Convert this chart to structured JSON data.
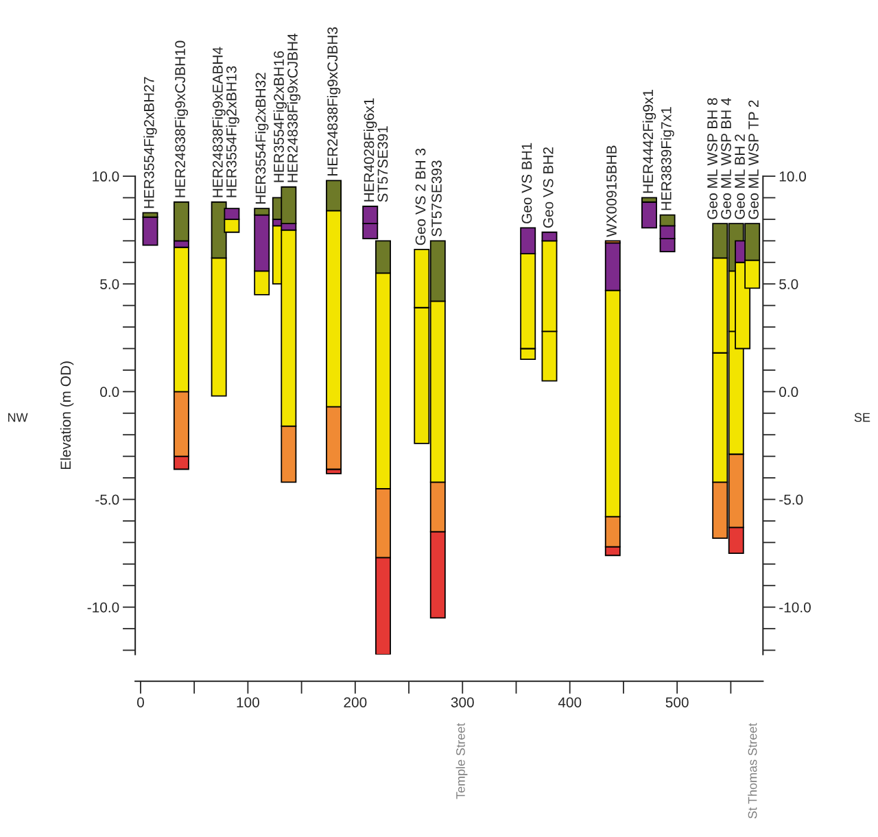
{
  "chart_data": {
    "type": "bar",
    "ylabel": "Elevation (m OD)",
    "x": [
      9,
      38,
      73,
      85,
      113,
      130,
      138,
      180,
      214,
      226,
      262,
      277,
      361,
      381,
      440,
      474,
      491,
      540,
      555,
      561,
      570
    ],
    "series": [
      {
        "color": "#e53935",
        "values": [
          null,
          0.6,
          null,
          null,
          null,
          null,
          null,
          0.2,
          null,
          4.5,
          null,
          4.0,
          null,
          null,
          0.4,
          null,
          null,
          null,
          1.2,
          null,
          null
        ],
        "base": [
          null,
          -3.6,
          null,
          null,
          null,
          null,
          null,
          -3.8,
          null,
          -12.2,
          null,
          -10.5,
          null,
          null,
          -7.6,
          null,
          null,
          null,
          -7.5,
          null,
          null
        ]
      },
      {
        "color": "#f08a34",
        "values": [
          null,
          3.0,
          null,
          null,
          null,
          null,
          2.6,
          2.9,
          null,
          3.2,
          null,
          2.3,
          null,
          null,
          1.4,
          null,
          null,
          2.6,
          3.4,
          null,
          null
        ],
        "base": [
          null,
          -3.0,
          null,
          null,
          null,
          null,
          -4.2,
          -3.6,
          null,
          -7.7,
          null,
          -6.5,
          null,
          null,
          -7.2,
          null,
          null,
          -6.8,
          -6.3,
          null,
          null
        ]
      },
      {
        "color": "#f2e400",
        "values": [
          null,
          null,
          null,
          null,
          null,
          null,
          null,
          null,
          null,
          null,
          6.3,
          null,
          0.5,
          2.3,
          null,
          null,
          null,
          6.0,
          5.7,
          null,
          null
        ],
        "base": [
          null,
          null,
          null,
          null,
          null,
          null,
          null,
          null,
          null,
          null,
          -2.4,
          null,
          1.5,
          0.5,
          null,
          null,
          null,
          -4.2,
          -2.9,
          null,
          null
        ]
      },
      {
        "color": "#f2e400",
        "values": [
          null,
          6.7,
          6.4,
          0.6,
          1.1,
          2.7,
          9.1,
          9.1,
          null,
          10.0,
          2.7,
          8.4,
          4.4,
          4.2,
          10.5,
          null,
          null,
          4.4,
          2.8,
          4.0,
          1.3
        ],
        "base": [
          null,
          0.0,
          -0.2,
          7.4,
          4.5,
          5.0,
          -1.6,
          -0.7,
          null,
          -4.5,
          3.9,
          -4.2,
          2.0,
          2.8,
          -5.8,
          null,
          null,
          1.8,
          2.8,
          2.0,
          4.8
        ]
      },
      {
        "color": "#7d2a8c",
        "values": [
          null,
          null,
          null,
          null,
          null,
          null,
          null,
          null,
          0.7,
          null,
          null,
          null,
          null,
          null,
          null,
          null,
          0.6,
          null,
          null,
          null,
          null
        ],
        "base": [
          null,
          null,
          null,
          null,
          null,
          null,
          null,
          null,
          7.1,
          null,
          null,
          null,
          null,
          null,
          null,
          null,
          6.5,
          null,
          null,
          null,
          null
        ]
      },
      {
        "color": "#7d2a8c",
        "values": [
          1.3,
          0.3,
          null,
          0.5,
          2.6,
          0.3,
          0.3,
          null,
          0.8,
          null,
          null,
          null,
          1.2,
          0.4,
          2.2,
          1.2,
          0.6,
          null,
          null,
          1.0,
          null
        ],
        "base": [
          6.8,
          6.7,
          null,
          8.0,
          5.6,
          7.7,
          7.5,
          null,
          7.8,
          null,
          null,
          null,
          6.4,
          7.0,
          4.7,
          7.6,
          7.1,
          null,
          null,
          6.0,
          null
        ]
      },
      {
        "color": "#6e7a28",
        "values": [
          0.2,
          1.8,
          2.6,
          null,
          0.3,
          1.0,
          1.7,
          1.4,
          null,
          1.5,
          null,
          2.8,
          null,
          null,
          null,
          0.2,
          0.5,
          1.6,
          2.2,
          null,
          1.7
        ],
        "base": [
          8.1,
          7.0,
          6.2,
          null,
          8.2,
          8.0,
          7.8,
          8.4,
          null,
          5.5,
          null,
          4.2,
          null,
          null,
          null,
          8.8,
          7.7,
          6.2,
          5.6,
          null,
          6.1
        ]
      },
      {
        "color": "#f08a34",
        "values": [
          null,
          null,
          null,
          null,
          null,
          null,
          null,
          null,
          null,
          null,
          null,
          null,
          null,
          null,
          0.1,
          null,
          null,
          null,
          null,
          null,
          null
        ],
        "base": [
          null,
          null,
          null,
          null,
          null,
          null,
          null,
          null,
          null,
          null,
          null,
          null,
          null,
          null,
          6.9,
          null,
          null,
          null,
          null,
          null,
          null
        ]
      }
    ],
    "xlim": [
      -5,
      580
    ],
    "xticks": [
      0,
      100,
      200,
      300,
      400,
      500
    ],
    "ylim": [
      -12.2,
      10
    ],
    "yticks": [
      {
        "value": -10,
        "label": "-10.0"
      },
      {
        "value": -5,
        "label": "-5.0"
      },
      {
        "value": 0,
        "label": "0.0"
      },
      {
        "value": 5,
        "label": "5.0"
      },
      {
        "value": 10,
        "label": "10.0"
      }
    ],
    "y2lim": [
      -12.2,
      10
    ],
    "y2ticks": [
      {
        "value": -10,
        "label": "-10.0"
      },
      {
        "value": -5,
        "label": "-5.0"
      },
      {
        "value": 0,
        "label": "0.0"
      },
      {
        "value": 5,
        "label": "5.0"
      },
      {
        "value": 10,
        "label": "10.0"
      }
    ],
    "grid": false,
    "annotations": [
      "NW",
      "SE",
      "Temple Street",
      "St Thomas Street",
      {
        "text": "HER3554Fig2xBH27",
        "x": 9,
        "y": 8.3
      },
      {
        "text": "HER24838Fig9xCJBH10",
        "x": 38,
        "y": 8.8
      },
      {
        "text": "HER24838Fig9xEABH4",
        "x": 73,
        "y": 8.8
      },
      {
        "text": "HER3554Fig2xBH13",
        "x": 85,
        "y": 8.5
      },
      {
        "text": "HER3554Fig2xBH32",
        "x": 113,
        "y": 8.5
      },
      {
        "text": "HER3554Fig2xBH16",
        "x": 130,
        "y": 9.0
      },
      {
        "text": "HER24838Fig9xCJBH4",
        "x": 138,
        "y": 9.5
      },
      {
        "text": "HER24838Fig9xCJBH3",
        "x": 180,
        "y": 9.8
      },
      {
        "text": "HER4028Fig6x1",
        "x": 214,
        "y": 8.6
      },
      {
        "text": "ST57SE391",
        "x": 226,
        "y": 7.0
      },
      {
        "text": "Geo VS 2 BH 3",
        "x": 262,
        "y": 6.6
      },
      {
        "text": "ST57SE393",
        "x": 277,
        "y": 7.0
      },
      {
        "text": "Geo VS BH1",
        "x": 361,
        "y": 7.6
      },
      {
        "text": "Geo VS BH2",
        "x": 381,
        "y": 7.4
      },
      {
        "text": "WX00915BHB",
        "x": 440,
        "y": 7.0
      },
      {
        "text": "HER4442Fig9x1",
        "x": 474,
        "y": 9.0
      },
      {
        "text": "HER3839Fig7x1",
        "x": 491,
        "y": 8.2
      },
      {
        "text": "Geo ML WSP BH 8",
        "x": 540,
        "y": 7.8
      },
      {
        "text": "Geo ML WSP BH 4",
        "x": 555,
        "y": 7.8
      },
      {
        "text": "Geo ML BH 2",
        "x": 561,
        "y": 7.0
      },
      {
        "text": "Geo ML WSP TP 2",
        "x": 570,
        "y": 7.8
      }
    ]
  }
}
